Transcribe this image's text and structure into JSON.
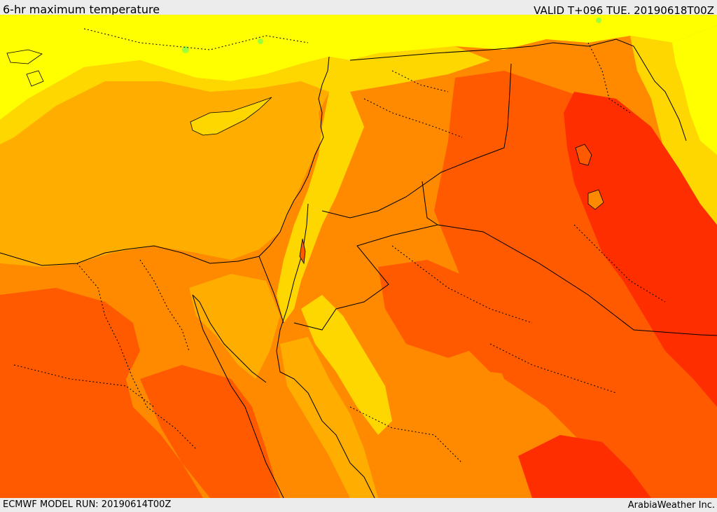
{
  "header": {
    "title": "6-hr maximum temperature",
    "valid": "VALID T+096 TUE. 20190618T00Z"
  },
  "footer": {
    "model_run": "ECMWF MODEL RUN: 20190614T00Z",
    "credit": "ArabiaWeather Inc."
  },
  "colors": {
    "band_cool": "#ffff00",
    "band_warm": "#ffd700",
    "band_hot": "#ffae00",
    "band_hotter": "#ff8a00",
    "band_very_hot": "#ff5a00",
    "band_extreme": "#ff2e00",
    "band_green": "#9bff3c"
  }
}
